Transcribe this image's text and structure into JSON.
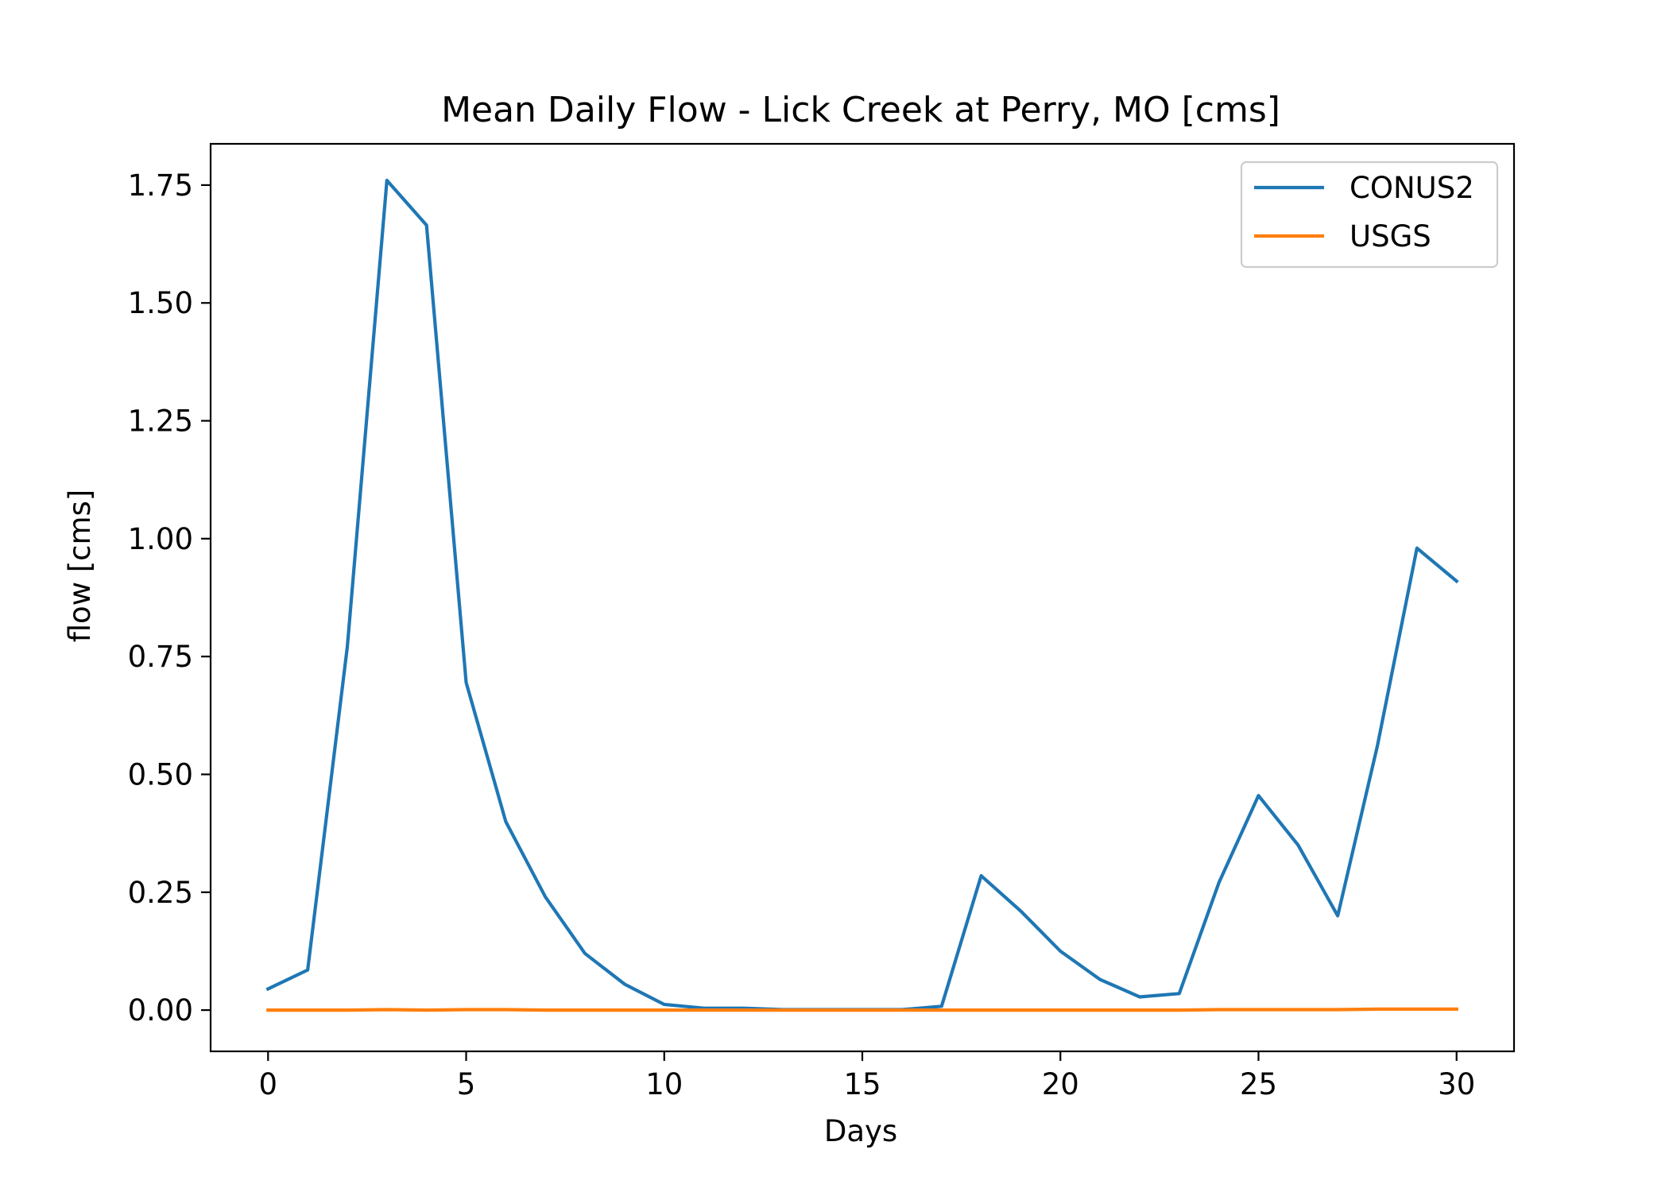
{
  "chart_data": {
    "type": "line",
    "title": "Mean Daily Flow - Lick Creek at Perry, MO [cms]",
    "xlabel": "Days",
    "ylabel": "flow [cms]",
    "xlim": [
      -1.45,
      31.45
    ],
    "ylim": [
      -0.0875,
      1.8375
    ],
    "xticks": [
      0,
      5,
      10,
      15,
      20,
      25,
      30
    ],
    "xtick_labels": [
      "0",
      "5",
      "10",
      "15",
      "20",
      "25",
      "30"
    ],
    "yticks": [
      0,
      0.25,
      0.5,
      0.75,
      1.0,
      1.25,
      1.5,
      1.75
    ],
    "ytick_labels": [
      "0.00",
      "0.25",
      "0.50",
      "0.75",
      "1.00",
      "1.25",
      "1.50",
      "1.75"
    ],
    "grid": false,
    "legend_position": "top-right",
    "x": [
      0,
      1,
      2,
      3,
      4,
      5,
      6,
      7,
      8,
      9,
      10,
      11,
      12,
      13,
      14,
      15,
      16,
      17,
      18,
      19,
      20,
      21,
      22,
      23,
      24,
      25,
      26,
      27,
      28,
      29,
      30
    ],
    "series": [
      {
        "name": "CONUS2",
        "color": "#1f77b4",
        "values": [
          0.045,
          0.085,
          0.77,
          1.76,
          1.665,
          0.695,
          0.4,
          0.24,
          0.12,
          0.055,
          0.012,
          0.004,
          0.004,
          0.001,
          0.001,
          0.001,
          0.001,
          0.008,
          0.285,
          0.21,
          0.125,
          0.065,
          0.028,
          0.035,
          0.27,
          0.455,
          0.35,
          0.2,
          0.56,
          0.98,
          0.91
        ]
      },
      {
        "name": "USGS",
        "color": "#ff7f0e",
        "values": [
          0.0,
          0.0,
          0.0,
          0.001,
          0.0,
          0.001,
          0.001,
          0.0,
          0.0,
          0.0,
          0.0,
          0.0,
          0.0,
          0.0,
          0.0,
          0.0,
          0.0,
          0.0,
          0.0,
          0.0,
          0.0,
          0.0,
          0.0,
          0.0,
          0.001,
          0.001,
          0.001,
          0.001,
          0.002,
          0.002,
          0.002
        ]
      }
    ]
  }
}
